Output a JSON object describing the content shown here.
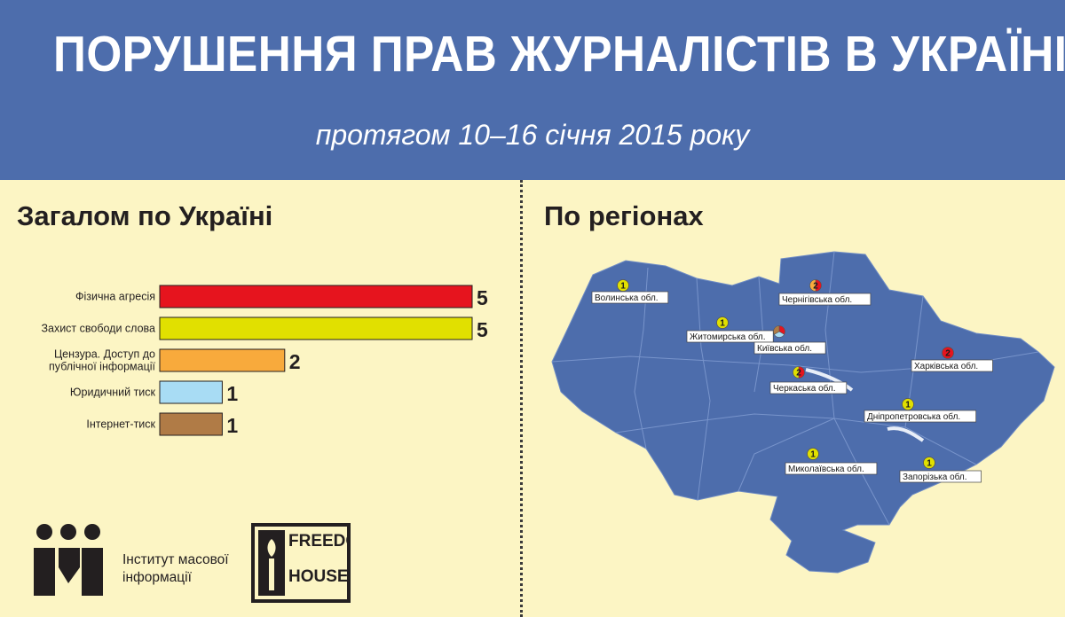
{
  "title": "ПОРУШЕННЯ ПРАВ ЖУРНАЛІСТІВ В УКРАЇНІ",
  "subtitle": "протягом 10–16 січня 2015 року",
  "left_section_title": "Загалом по Україні",
  "right_section_title": "По регіонах",
  "colors": {
    "header_bg": "#4d6dac",
    "page_bg": "#fcf5c4",
    "map_fill": "#4d6dac"
  },
  "chart_data": {
    "type": "bar",
    "orientation": "horizontal",
    "categories": [
      [
        "Фізична агресія"
      ],
      [
        "Захист свободи слова"
      ],
      [
        "Цензура. Доступ до",
        "публічної інформації"
      ],
      [
        "Юридичний тиск"
      ],
      [
        "Інтернет-тиск"
      ]
    ],
    "values": [
      5,
      5,
      2,
      1,
      1
    ],
    "colors": [
      "#e6141e",
      "#e1e000",
      "#f8aa3c",
      "#a8dcf4",
      "#b07b46"
    ],
    "xlim": [
      0,
      5
    ],
    "grid": false,
    "legend": "none"
  },
  "map": {
    "regions": [
      {
        "name": "Волинська обл.",
        "count": "1",
        "color": "#e1e000"
      },
      {
        "name": "Чернігівська обл.",
        "count": "2",
        "colors": [
          "#e6141e",
          "#f8aa3c"
        ]
      },
      {
        "name": "Житомирська обл.",
        "count": "1",
        "color": "#e1e000"
      },
      {
        "name": "Київська обл.",
        "count": "",
        "colors": [
          "#e6141e",
          "#a8dcf4",
          "#b07b46"
        ]
      },
      {
        "name": "Харківська обл.",
        "count": "2",
        "color": "#e6141e"
      },
      {
        "name": "Черкаська обл.",
        "count": "2",
        "colors": [
          "#e6141e",
          "#e1e000"
        ]
      },
      {
        "name": "Дніпропетровська обл.",
        "count": "1",
        "color": "#e1e000"
      },
      {
        "name": "Миколаївська обл.",
        "count": "1",
        "color": "#e1e000"
      },
      {
        "name": "Запорізька обл.",
        "count": "1",
        "color": "#e1e000"
      }
    ]
  },
  "logos": {
    "imi_line1": "Інститут масової",
    "imi_line2": "інформації",
    "fh_line1": "FREEDOM",
    "fh_line2": "HOUSE"
  }
}
